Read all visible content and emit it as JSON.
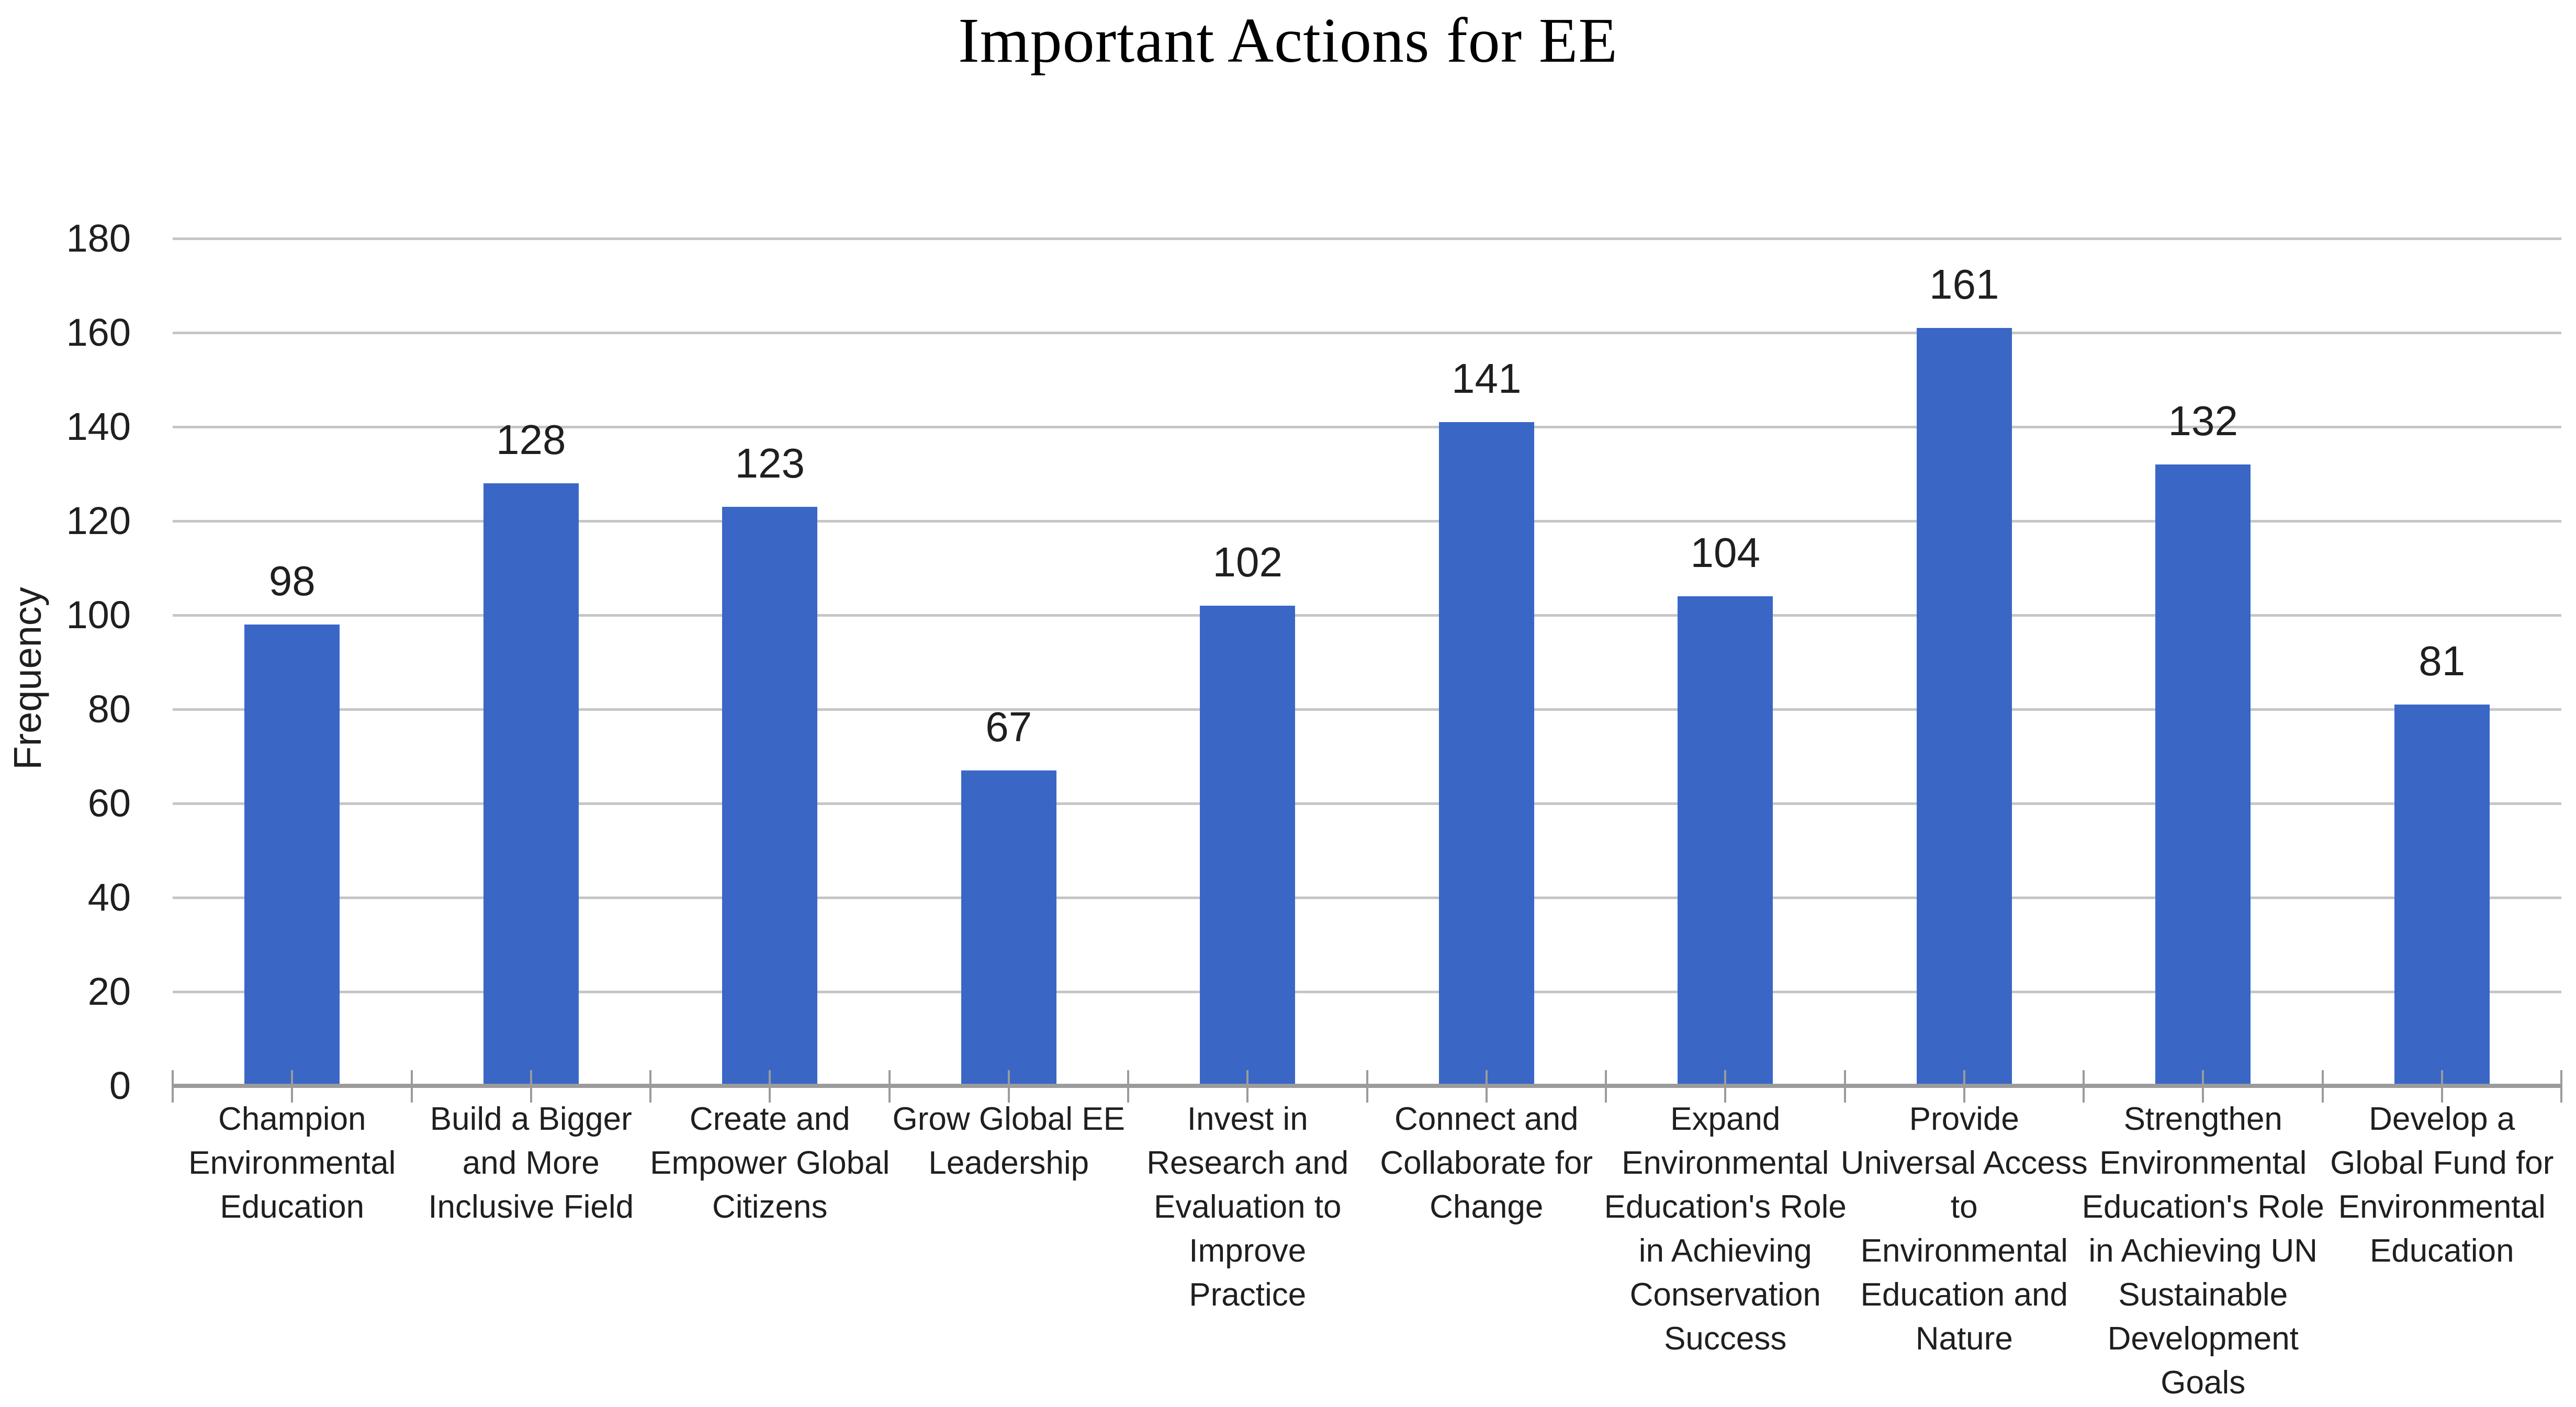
{
  "chart_data": {
    "type": "bar",
    "title": "Important Actions for EE",
    "ylabel": "Frequency",
    "xlabel": "",
    "categories": [
      "Champion\nEnvironmental\nEducation",
      "Build a Bigger\nand More\nInclusive Field",
      "Create and\nEmpower Global\nCitizens",
      "Grow Global EE\nLeadership",
      "Invest in\nResearch and\nEvaluation to\nImprove\nPractice",
      "Connect and\nCollaborate for\nChange",
      "Expand\nEnvironmental\nEducation's Role\nin Achieving\nConservation\nSuccess",
      "Provide\nUniversal Access\nto\nEnvironmental\nEducation and\nNature",
      "Strengthen\nEnvironmental\nEducation's Role\nin Achieving UN\nSustainable\nDevelopment\nGoals",
      "Develop a\nGlobal Fund for\nEnvironmental\nEducation"
    ],
    "values": [
      98,
      128,
      123,
      67,
      102,
      141,
      104,
      161,
      132,
      81
    ],
    "ylim": [
      0,
      180
    ],
    "ytick_step": 20,
    "ytick_labels": [
      "0",
      "20",
      "40",
      "60",
      "80",
      "100",
      "120",
      "140",
      "160",
      "180"
    ],
    "grid": "horizontal gridlines on",
    "legend": "none",
    "colors": {
      "bar": "#3A66C6",
      "gridline": "#C6C6C6",
      "axis_line": "#9B9B9B",
      "tick": "#9B9B9B",
      "label_text": "#1F1F1F",
      "title_text": "#000000",
      "background": "#FFFFFF"
    }
  }
}
